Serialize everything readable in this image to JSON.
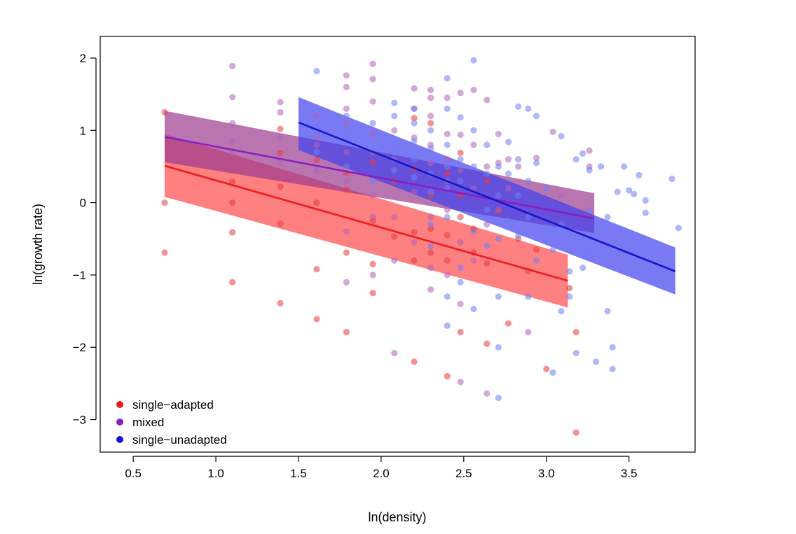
{
  "chart_data": {
    "type": "scatter",
    "xlabel": "ln(density)",
    "ylabel": "ln(growth rate)",
    "xlim": [
      0.3,
      3.9
    ],
    "ylim": [
      -3.45,
      2.3
    ],
    "xticks": [
      0.5,
      1.0,
      1.5,
      2.0,
      2.5,
      3.0,
      3.5
    ],
    "xtick_labels": [
      "0.5",
      "1.0",
      "1.5",
      "2.0",
      "2.5",
      "3.0",
      "3.5"
    ],
    "yticks": [
      -3,
      -2,
      -1,
      0,
      1,
      2
    ],
    "ytick_labels": [
      "−3",
      "−2",
      "−1",
      "0",
      "1",
      "2"
    ],
    "legend_position": "bottom-left",
    "series": [
      {
        "name": "single−adapted",
        "color": "#ee1c1c",
        "point_color": "#e8383a",
        "band_color": "#ff4a4a",
        "fit": {
          "x": [
            0.69,
            3.13
          ],
          "y": [
            0.51,
            -1.08
          ]
        },
        "band": {
          "x": [
            0.69,
            3.13
          ],
          "lower": [
            0.08,
            -1.45
          ],
          "upper": [
            0.95,
            -0.72
          ]
        },
        "points": [
          [
            0.69,
            1.25
          ],
          [
            0.69,
            0.0
          ],
          [
            0.69,
            -0.69
          ],
          [
            1.1,
            0.0
          ],
          [
            1.1,
            -0.41
          ],
          [
            1.1,
            -1.1
          ],
          [
            1.39,
            1.02
          ],
          [
            1.39,
            0.69
          ],
          [
            1.39,
            0.22
          ],
          [
            1.39,
            -0.29
          ],
          [
            1.39,
            -1.39
          ],
          [
            1.61,
            0.59
          ],
          [
            1.61,
            0.0
          ],
          [
            1.61,
            -0.92
          ],
          [
            1.61,
            -1.61
          ],
          [
            1.79,
            0.41
          ],
          [
            1.79,
            0.18
          ],
          [
            1.79,
            -0.69
          ],
          [
            1.79,
            -1.79
          ],
          [
            1.95,
            0.56
          ],
          [
            1.95,
            -0.25
          ],
          [
            1.95,
            -0.85
          ],
          [
            1.95,
            -1.25
          ],
          [
            2.08,
            0.29
          ],
          [
            2.08,
            -0.47
          ],
          [
            2.2,
            1.17
          ],
          [
            2.2,
            0.47
          ],
          [
            2.2,
            -0.41
          ],
          [
            2.2,
            -0.8
          ],
          [
            2.2,
            -2.2
          ],
          [
            2.3,
            0.1
          ],
          [
            2.3,
            -0.36
          ],
          [
            2.3,
            -0.69
          ],
          [
            2.3,
            1.1
          ],
          [
            2.4,
            0.41
          ],
          [
            2.4,
            -0.45
          ],
          [
            2.4,
            -0.8
          ],
          [
            2.4,
            -2.4
          ],
          [
            2.48,
            0.69
          ],
          [
            2.48,
            0.1
          ],
          [
            2.48,
            -0.2
          ],
          [
            2.48,
            -1.79
          ],
          [
            2.56,
            -0.36
          ],
          [
            2.56,
            -0.69
          ],
          [
            2.64,
            0.3
          ],
          [
            2.64,
            -0.84
          ],
          [
            2.64,
            -1.95
          ],
          [
            2.71,
            -0.12
          ],
          [
            2.77,
            -1.67
          ],
          [
            2.83,
            -0.5
          ],
          [
            2.89,
            -0.95
          ],
          [
            2.94,
            -0.65
          ],
          [
            3.0,
            -2.3
          ],
          [
            3.14,
            -1.18
          ],
          [
            3.18,
            -1.79
          ],
          [
            3.18,
            -3.18
          ],
          [
            1.1,
            0.29
          ]
        ]
      },
      {
        "name": "mixed",
        "color": "#8a1fbf",
        "point_color": "#b060b8",
        "band_color": "#9b3a8f",
        "fit": {
          "x": [
            0.69,
            3.29
          ],
          "y": [
            0.91,
            -0.22
          ]
        },
        "band": {
          "x": [
            0.69,
            3.29
          ],
          "lower": [
            0.56,
            -0.42
          ],
          "upper": [
            1.27,
            0.13
          ]
        },
        "points": [
          [
            1.1,
            1.89
          ],
          [
            1.1,
            1.46
          ],
          [
            1.1,
            1.1
          ],
          [
            1.1,
            0.85
          ],
          [
            1.1,
            0.69
          ],
          [
            1.39,
            1.39
          ],
          [
            1.39,
            1.25
          ],
          [
            1.39,
            0.9
          ],
          [
            1.39,
            0.56
          ],
          [
            1.61,
            1.2
          ],
          [
            1.61,
            0.92
          ],
          [
            1.61,
            0.8
          ],
          [
            1.61,
            0.45
          ],
          [
            1.79,
            1.76
          ],
          [
            1.79,
            1.6
          ],
          [
            1.79,
            1.3
          ],
          [
            1.79,
            1.1
          ],
          [
            1.79,
            0.7
          ],
          [
            1.79,
            0.3
          ],
          [
            1.79,
            -0.4
          ],
          [
            1.79,
            -1.1
          ],
          [
            1.95,
            1.92
          ],
          [
            1.95,
            1.4
          ],
          [
            1.95,
            0.96
          ],
          [
            1.95,
            0.7
          ],
          [
            1.95,
            0.1
          ],
          [
            1.95,
            -0.2
          ],
          [
            1.95,
            -1.0
          ],
          [
            2.08,
            1.0
          ],
          [
            2.08,
            0.6
          ],
          [
            2.08,
            -0.2
          ],
          [
            2.08,
            -0.8
          ],
          [
            2.08,
            -2.08
          ],
          [
            2.2,
            1.58
          ],
          [
            2.2,
            1.3
          ],
          [
            2.2,
            0.9
          ],
          [
            2.2,
            0.15
          ],
          [
            2.2,
            -0.55
          ],
          [
            2.3,
            1.56
          ],
          [
            2.3,
            1.45
          ],
          [
            2.3,
            1.2
          ],
          [
            2.3,
            0.8
          ],
          [
            2.3,
            0.55
          ],
          [
            2.3,
            -0.2
          ],
          [
            2.3,
            -0.9
          ],
          [
            2.3,
            -1.2
          ],
          [
            2.4,
            1.45
          ],
          [
            2.4,
            0.95
          ],
          [
            2.4,
            0.6
          ],
          [
            2.4,
            0.3
          ],
          [
            2.4,
            -0.1
          ],
          [
            2.4,
            -1.0
          ],
          [
            2.48,
            1.52
          ],
          [
            2.48,
            0.94
          ],
          [
            2.48,
            0.45
          ],
          [
            2.48,
            -0.55
          ],
          [
            2.48,
            -1.4
          ],
          [
            2.48,
            -2.48
          ],
          [
            2.56,
            1.56
          ],
          [
            2.56,
            0.8
          ],
          [
            2.56,
            0.2
          ],
          [
            2.56,
            -0.8
          ],
          [
            2.64,
            1.42
          ],
          [
            2.64,
            0.5
          ],
          [
            2.64,
            -0.3
          ],
          [
            2.64,
            -2.64
          ],
          [
            2.71,
            0.95
          ],
          [
            2.71,
            0.55
          ],
          [
            2.71,
            -0.1
          ],
          [
            2.77,
            0.6
          ],
          [
            2.77,
            0.2
          ],
          [
            2.83,
            0.5
          ],
          [
            2.89,
            -1.79
          ],
          [
            2.94,
            0.62
          ],
          [
            3.04,
            0.98
          ],
          [
            3.09,
            0.1
          ],
          [
            3.26,
            0.72
          ],
          [
            3.26,
            0.5
          ],
          [
            1.95,
            1.71
          ]
        ]
      },
      {
        "name": "single−unadapted",
        "color": "#1515cc",
        "point_color": "#6f7ef0",
        "band_color": "#4040ee",
        "fit": {
          "x": [
            1.5,
            3.78
          ],
          "y": [
            1.11,
            -0.95
          ]
        },
        "band": {
          "x": [
            1.5,
            3.78
          ],
          "lower": [
            0.73,
            -1.27
          ],
          "upper": [
            1.46,
            -0.62
          ]
        },
        "points": [
          [
            1.61,
            1.82
          ],
          [
            1.61,
            1.27
          ],
          [
            1.61,
            1.0
          ],
          [
            1.61,
            0.7
          ],
          [
            1.79,
            1.2
          ],
          [
            1.79,
            0.95
          ],
          [
            1.79,
            0.5
          ],
          [
            1.95,
            1.1
          ],
          [
            1.95,
            0.75
          ],
          [
            1.95,
            0.3
          ],
          [
            2.08,
            1.38
          ],
          [
            2.08,
            1.2
          ],
          [
            2.08,
            0.8
          ],
          [
            2.08,
            0.45
          ],
          [
            2.2,
            1.3
          ],
          [
            2.2,
            1.1
          ],
          [
            2.2,
            0.85
          ],
          [
            2.2,
            0.6
          ],
          [
            2.2,
            0.35
          ],
          [
            2.3,
            1.0
          ],
          [
            2.3,
            0.75
          ],
          [
            2.3,
            0.4
          ],
          [
            2.3,
            0.15
          ],
          [
            2.3,
            -0.3
          ],
          [
            2.3,
            -0.6
          ],
          [
            2.4,
            1.72
          ],
          [
            2.4,
            1.3
          ],
          [
            2.4,
            0.8
          ],
          [
            2.4,
            0.5
          ],
          [
            2.4,
            0.2
          ],
          [
            2.4,
            -0.2
          ],
          [
            2.4,
            -1.3
          ],
          [
            2.4,
            -1.7
          ],
          [
            2.48,
            1.18
          ],
          [
            2.48,
            0.6
          ],
          [
            2.48,
            0.3
          ],
          [
            2.48,
            -0.9
          ],
          [
            2.48,
            -1.1
          ],
          [
            2.56,
            1.97
          ],
          [
            2.56,
            1.0
          ],
          [
            2.56,
            0.5
          ],
          [
            2.56,
            -0.4
          ],
          [
            2.56,
            -1.47
          ],
          [
            2.64,
            0.8
          ],
          [
            2.64,
            0.4
          ],
          [
            2.64,
            -0.1
          ],
          [
            2.64,
            -0.6
          ],
          [
            2.71,
            0.5
          ],
          [
            2.71,
            0.1
          ],
          [
            2.71,
            -0.5
          ],
          [
            2.71,
            -1.3
          ],
          [
            2.71,
            -2.0
          ],
          [
            2.71,
            -2.7
          ],
          [
            2.77,
            0.84
          ],
          [
            2.77,
            0.4
          ],
          [
            2.77,
            -0.25
          ],
          [
            2.83,
            1.33
          ],
          [
            2.83,
            0.6
          ],
          [
            2.83,
            0.1
          ],
          [
            2.83,
            -0.45
          ],
          [
            2.89,
            1.3
          ],
          [
            2.89,
            0.3
          ],
          [
            2.89,
            -0.2
          ],
          [
            2.89,
            -1.3
          ],
          [
            2.94,
            1.2
          ],
          [
            2.94,
            0.55
          ],
          [
            2.94,
            -0.8
          ],
          [
            3.0,
            0.2
          ],
          [
            3.0,
            -0.4
          ],
          [
            3.04,
            -0.65
          ],
          [
            3.04,
            -2.35
          ],
          [
            3.09,
            0.92
          ],
          [
            3.09,
            -0.3
          ],
          [
            3.09,
            -1.5
          ],
          [
            3.14,
            -0.95
          ],
          [
            3.14,
            -1.3
          ],
          [
            3.18,
            0.6
          ],
          [
            3.18,
            -0.5
          ],
          [
            3.18,
            -2.08
          ],
          [
            3.22,
            0.68
          ],
          [
            3.22,
            -0.9
          ],
          [
            3.26,
            0.45
          ],
          [
            3.26,
            -0.65
          ],
          [
            3.3,
            -2.2
          ],
          [
            3.33,
            0.5
          ],
          [
            3.37,
            -0.2
          ],
          [
            3.37,
            -1.5
          ],
          [
            3.4,
            -2.3
          ],
          [
            3.4,
            -2.0
          ],
          [
            3.43,
            0.15
          ],
          [
            3.47,
            0.5
          ],
          [
            3.5,
            0.17
          ],
          [
            3.53,
            0.12
          ],
          [
            3.56,
            0.38
          ],
          [
            3.6,
            0.03
          ],
          [
            3.6,
            -0.14
          ],
          [
            3.76,
            0.33
          ],
          [
            3.8,
            -0.35
          ],
          [
            3.26,
            -0.1
          ]
        ]
      }
    ]
  }
}
